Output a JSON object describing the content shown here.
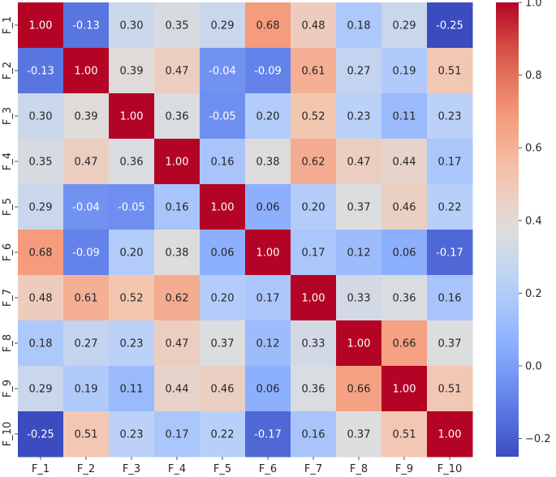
{
  "chart_data": {
    "type": "heatmap",
    "title": "",
    "xlabel": "",
    "ylabel": "",
    "rows": [
      "F_1",
      "F_2",
      "F_3",
      "F_4",
      "F_5",
      "F_6",
      "F_7",
      "F_8",
      "F_9",
      "F_10"
    ],
    "columns": [
      "F_1",
      "F_2",
      "F_3",
      "F_4",
      "F_5",
      "F_6",
      "F_7",
      "F_8",
      "F_9",
      "F_10"
    ],
    "values": [
      [
        1.0,
        -0.13,
        0.3,
        0.35,
        0.29,
        0.68,
        0.48,
        0.18,
        0.29,
        -0.25
      ],
      [
        -0.13,
        1.0,
        0.39,
        0.47,
        -0.04,
        -0.09,
        0.61,
        0.27,
        0.19,
        0.51
      ],
      [
        0.3,
        0.39,
        1.0,
        0.36,
        -0.05,
        0.2,
        0.52,
        0.23,
        0.11,
        0.23
      ],
      [
        0.35,
        0.47,
        0.36,
        1.0,
        0.16,
        0.38,
        0.62,
        0.47,
        0.44,
        0.17
      ],
      [
        0.29,
        -0.04,
        -0.05,
        0.16,
        1.0,
        0.06,
        0.2,
        0.37,
        0.46,
        0.22
      ],
      [
        0.68,
        -0.09,
        0.2,
        0.38,
        0.06,
        1.0,
        0.17,
        0.12,
        0.06,
        -0.17
      ],
      [
        0.48,
        0.61,
        0.52,
        0.62,
        0.2,
        0.17,
        1.0,
        0.33,
        0.36,
        0.16
      ],
      [
        0.18,
        0.27,
        0.23,
        0.47,
        0.37,
        0.12,
        0.33,
        1.0,
        0.66,
        0.37
      ],
      [
        0.29,
        0.19,
        0.11,
        0.44,
        0.46,
        0.06,
        0.36,
        0.66,
        1.0,
        0.51
      ],
      [
        -0.25,
        0.51,
        0.23,
        0.17,
        0.22,
        -0.17,
        0.16,
        0.37,
        0.51,
        1.0
      ]
    ],
    "annotation_format": "0.00",
    "colormap": "coolwarm",
    "colorbar": {
      "range": [
        -0.25,
        1.0
      ],
      "ticks": [
        -0.2,
        0.0,
        0.2,
        0.4,
        0.6,
        0.8,
        1.0
      ],
      "tick_labels": [
        "−0.2",
        "0.0",
        "0.2",
        "0.4",
        "0.6",
        "0.8",
        "1.0"
      ]
    },
    "legend": "colorbar-right"
  }
}
